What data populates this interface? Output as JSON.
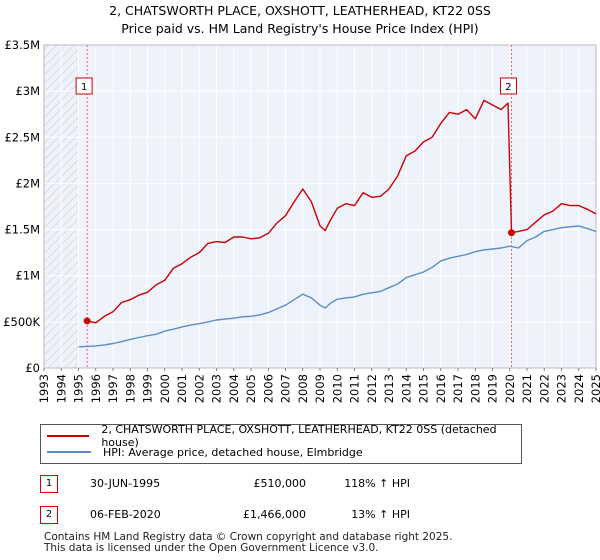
{
  "chart_data": {
    "type": "line",
    "title": "2, CHATSWORTH PLACE, OXSHOTT, LEATHERHEAD, KT22 0SS",
    "subtitle": "Price paid vs. HM Land Registry's House Price Index (HPI)",
    "xlabel": "",
    "ylabel": "",
    "xlim": [
      1993,
      2025
    ],
    "ylim": [
      0,
      3500000
    ],
    "grid": true,
    "x_ticks": [
      "1993",
      "1994",
      "1995",
      "1996",
      "1997",
      "1998",
      "1999",
      "2000",
      "2001",
      "2002",
      "2003",
      "2004",
      "2005",
      "2006",
      "2007",
      "2008",
      "2009",
      "2010",
      "2011",
      "2012",
      "2013",
      "2014",
      "2015",
      "2016",
      "2017",
      "2018",
      "2019",
      "2020",
      "2021",
      "2022",
      "2023",
      "2024",
      "2025"
    ],
    "y_ticks": [
      {
        "value": 0,
        "label": "£0"
      },
      {
        "value": 500000,
        "label": "£500K"
      },
      {
        "value": 1000000,
        "label": "£1M"
      },
      {
        "value": 1500000,
        "label": "£1.5M"
      },
      {
        "value": 2000000,
        "label": "£2M"
      },
      {
        "value": 2500000,
        "label": "£2.5M"
      },
      {
        "value": 3000000,
        "label": "£3M"
      },
      {
        "value": 3500000,
        "label": "£3.5M"
      }
    ],
    "hatched_before": 1995.0,
    "hatched_after": 2025.0,
    "series": [
      {
        "name": "2, CHATSWORTH PLACE, OXSHOTT, LEATHERHEAD, KT22 0SS (detached house)",
        "color": "#cc0000",
        "x": [
          1995.5,
          1996,
          1996.5,
          1997,
          1997.5,
          1998,
          1998.5,
          1999,
          1999.5,
          2000,
          2000.5,
          2001,
          2001.5,
          2002,
          2002.5,
          2003,
          2003.5,
          2004,
          2004.5,
          2005,
          2005.5,
          2006,
          2006.5,
          2007,
          2007.5,
          2008,
          2008.5,
          2009,
          2009.3,
          2009.6,
          2010,
          2010.5,
          2011,
          2011.5,
          2012,
          2012.5,
          2013,
          2013.5,
          2014,
          2014.5,
          2015,
          2015.5,
          2016,
          2016.5,
          2017,
          2017.5,
          2018,
          2018.5,
          2019,
          2019.5,
          2019.9,
          2020.1,
          2020.5,
          2021,
          2021.5,
          2022,
          2022.5,
          2023,
          2023.5,
          2024,
          2024.5,
          2025
        ],
        "y": [
          510000,
          490000,
          560000,
          610000,
          710000,
          740000,
          790000,
          820000,
          900000,
          950000,
          1080000,
          1130000,
          1200000,
          1250000,
          1350000,
          1370000,
          1360000,
          1420000,
          1420000,
          1400000,
          1410000,
          1460000,
          1570000,
          1650000,
          1800000,
          1940000,
          1800000,
          1540000,
          1490000,
          1600000,
          1730000,
          1780000,
          1760000,
          1900000,
          1850000,
          1860000,
          1940000,
          2080000,
          2300000,
          2350000,
          2450000,
          2500000,
          2650000,
          2770000,
          2750000,
          2800000,
          2700000,
          2900000,
          2850000,
          2800000,
          2870000,
          1466000,
          1480000,
          1500000,
          1580000,
          1660000,
          1700000,
          1780000,
          1760000,
          1760000,
          1720000,
          1670000
        ]
      },
      {
        "name": "HPI: Average price, detached house, Elmbridge",
        "color": "#5b8dc8",
        "x": [
          1995,
          1995.5,
          1996,
          1996.5,
          1997,
          1997.5,
          1998,
          1998.5,
          1999,
          1999.5,
          2000,
          2000.5,
          2001,
          2001.5,
          2002,
          2002.5,
          2003,
          2003.5,
          2004,
          2004.5,
          2005,
          2005.5,
          2006,
          2006.5,
          2007,
          2007.5,
          2008,
          2008.5,
          2009,
          2009.3,
          2009.6,
          2010,
          2010.5,
          2011,
          2011.5,
          2012,
          2012.5,
          2013,
          2013.5,
          2014,
          2014.5,
          2015,
          2015.5,
          2016,
          2016.5,
          2017,
          2017.5,
          2018,
          2018.5,
          2019,
          2019.5,
          2020,
          2020.5,
          2021,
          2021.5,
          2022,
          2022.5,
          2023,
          2023.5,
          2024,
          2024.5,
          2025
        ],
        "y": [
          230000,
          234000,
          240000,
          250000,
          265000,
          285000,
          310000,
          330000,
          350000,
          365000,
          400000,
          420000,
          445000,
          465000,
          480000,
          500000,
          520000,
          530000,
          540000,
          555000,
          560000,
          575000,
          600000,
          640000,
          680000,
          740000,
          800000,
          760000,
          680000,
          650000,
          700000,
          745000,
          760000,
          770000,
          800000,
          815000,
          830000,
          870000,
          910000,
          980000,
          1010000,
          1040000,
          1090000,
          1160000,
          1190000,
          1210000,
          1230000,
          1260000,
          1280000,
          1290000,
          1300000,
          1320000,
          1300000,
          1380000,
          1420000,
          1480000,
          1500000,
          1520000,
          1530000,
          1540000,
          1510000,
          1480000
        ]
      }
    ],
    "annotations": [
      {
        "label": "1",
        "x": 1995.5,
        "y": 510000
      },
      {
        "label": "2",
        "x": 2020.1,
        "y": 1466000
      }
    ]
  },
  "legend": {
    "items": [
      {
        "label": "2, CHATSWORTH PLACE, OXSHOTT, LEATHERHEAD, KT22 0SS (detached house)",
        "color": "#cc0000"
      },
      {
        "label": "HPI: Average price, detached house, Elmbridge",
        "color": "#5b8dc8"
      }
    ]
  },
  "sales": [
    {
      "num": "1",
      "date": "30-JUN-1995",
      "price": "£510,000",
      "hpi": "118% ↑ HPI"
    },
    {
      "num": "2",
      "date": "06-FEB-2020",
      "price": "£1,466,000",
      "hpi": "13% ↑ HPI"
    }
  ],
  "footer": {
    "line1": "Contains HM Land Registry data © Crown copyright and database right 2025.",
    "line2": "This data is licensed under the Open Government Licence v3.0."
  }
}
